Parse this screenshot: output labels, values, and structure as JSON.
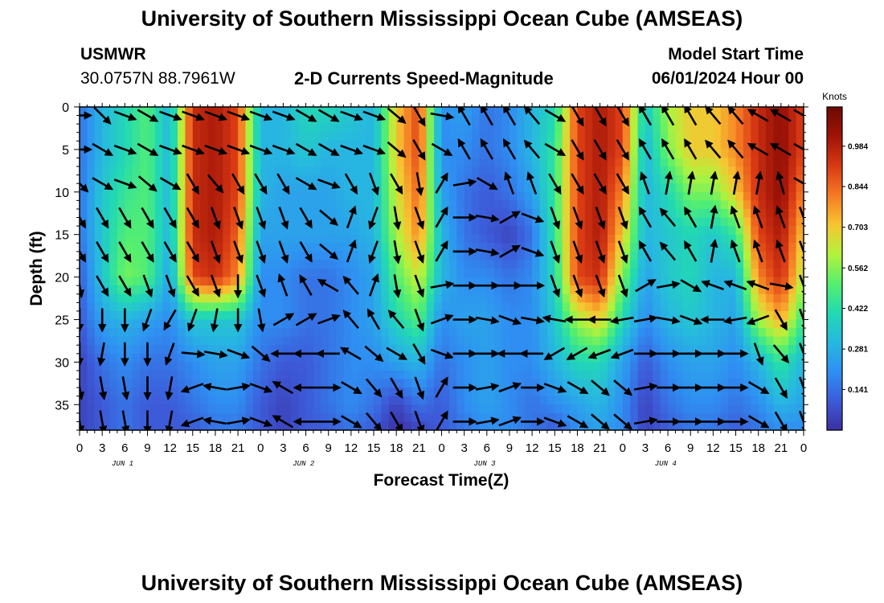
{
  "header": {
    "title": "University of Southern Mississippi Ocean Cube (AMSEAS)",
    "station_name": "USMWR",
    "station_coords": "30.0757N  88.7961W",
    "plot_title": "2-D Currents Speed-Magnitude",
    "start_label": "Model Start Time",
    "start_value": "06/01/2024 Hour 00"
  },
  "footer": {
    "title": "University of Southern Mississippi Ocean Cube (AMSEAS)"
  },
  "colors": {
    "ramp": [
      "#3b2fa0",
      "#3d5bd9",
      "#2f8ff2",
      "#27b8e0",
      "#22d9b2",
      "#55ef6f",
      "#b3f23c",
      "#f7c532",
      "#f57b24",
      "#d93a14",
      "#a11408",
      "#6e0a03"
    ]
  },
  "chart_data": {
    "type": "heatmap",
    "xlabel": "Forecast Time(Z)",
    "ylabel": "Depth (ft)",
    "x_ticks": [
      "0",
      "3",
      "6",
      "9",
      "12",
      "15",
      "18",
      "21",
      "0",
      "3",
      "6",
      "9",
      "12",
      "15",
      "18",
      "21",
      "0",
      "3",
      "6",
      "9",
      "12",
      "15",
      "18",
      "21",
      "0",
      "3",
      "6",
      "9",
      "12",
      "15",
      "18",
      "21",
      "0"
    ],
    "x_range_hours": [
      0,
      96
    ],
    "day_labels": [
      {
        "label": "JUN 1",
        "hour": 4
      },
      {
        "label": "JUN 2",
        "hour": 28
      },
      {
        "label": "JUN 3",
        "hour": 52
      },
      {
        "label": "JUN 4",
        "hour": 76
      }
    ],
    "y_ticks": [
      "0",
      "5",
      "10",
      "15",
      "20",
      "25",
      "30",
      "35"
    ],
    "y_range_ft": [
      0,
      38
    ],
    "colorbar": {
      "unit": "Knots",
      "ticks": [
        "0.984",
        "0.844",
        "0.703",
        "0.562",
        "0.422",
        "0.281",
        "0.141"
      ],
      "range": [
        0,
        1.12
      ]
    },
    "speed_grid": {
      "hours": [
        0,
        3,
        6,
        9,
        12,
        15,
        18,
        21,
        24,
        27,
        30,
        33,
        36,
        39,
        42,
        45,
        48,
        51,
        54,
        57,
        60,
        63,
        66,
        69,
        72,
        75,
        78,
        81,
        84,
        87,
        90,
        93,
        96
      ],
      "depths_ft": [
        0,
        5,
        10,
        15,
        20,
        25,
        30,
        35,
        38
      ],
      "values": [
        [
          0.15,
          0.3,
          0.4,
          0.5,
          0.3,
          0.95,
          1.0,
          0.9,
          0.3,
          0.3,
          0.4,
          0.4,
          0.35,
          0.3,
          0.7,
          0.9,
          0.2,
          0.25,
          0.15,
          0.2,
          0.3,
          0.4,
          0.9,
          1.0,
          0.9,
          0.35,
          0.6,
          0.7,
          0.7,
          0.8,
          0.95,
          1.05,
          0.9
        ],
        [
          0.15,
          0.3,
          0.4,
          0.5,
          0.3,
          0.95,
          1.0,
          0.9,
          0.3,
          0.3,
          0.35,
          0.3,
          0.3,
          0.3,
          0.7,
          0.9,
          0.2,
          0.2,
          0.15,
          0.2,
          0.3,
          0.45,
          0.9,
          1.0,
          0.9,
          0.3,
          0.55,
          0.7,
          0.7,
          0.8,
          0.95,
          1.05,
          0.9
        ],
        [
          0.15,
          0.35,
          0.45,
          0.5,
          0.3,
          0.95,
          1.0,
          0.9,
          0.3,
          0.25,
          0.25,
          0.25,
          0.3,
          0.3,
          0.65,
          0.85,
          0.25,
          0.15,
          0.1,
          0.15,
          0.25,
          0.45,
          0.9,
          1.0,
          0.8,
          0.3,
          0.4,
          0.55,
          0.55,
          0.7,
          0.95,
          1.05,
          0.8
        ],
        [
          0.15,
          0.35,
          0.5,
          0.5,
          0.3,
          0.95,
          1.0,
          0.85,
          0.25,
          0.25,
          0.25,
          0.25,
          0.25,
          0.3,
          0.6,
          0.8,
          0.3,
          0.15,
          0.1,
          0.05,
          0.15,
          0.45,
          0.9,
          1.0,
          0.7,
          0.3,
          0.35,
          0.4,
          0.35,
          0.45,
          0.9,
          1.0,
          0.7
        ],
        [
          0.1,
          0.35,
          0.55,
          0.5,
          0.25,
          0.9,
          0.95,
          0.8,
          0.2,
          0.2,
          0.15,
          0.15,
          0.2,
          0.25,
          0.5,
          0.65,
          0.3,
          0.2,
          0.2,
          0.15,
          0.2,
          0.4,
          0.9,
          0.95,
          0.55,
          0.25,
          0.35,
          0.4,
          0.3,
          0.3,
          0.8,
          0.95,
          0.6
        ],
        [
          0.1,
          0.25,
          0.3,
          0.25,
          0.2,
          0.35,
          0.35,
          0.35,
          0.2,
          0.2,
          0.15,
          0.15,
          0.2,
          0.25,
          0.4,
          0.5,
          0.2,
          0.25,
          0.25,
          0.2,
          0.2,
          0.35,
          0.6,
          0.7,
          0.4,
          0.2,
          0.3,
          0.35,
          0.3,
          0.25,
          0.6,
          0.75,
          0.45
        ],
        [
          0.05,
          0.15,
          0.2,
          0.15,
          0.15,
          0.2,
          0.25,
          0.25,
          0.15,
          0.1,
          0.1,
          0.15,
          0.2,
          0.2,
          0.25,
          0.3,
          0.15,
          0.2,
          0.25,
          0.2,
          0.2,
          0.3,
          0.4,
          0.4,
          0.25,
          0.1,
          0.2,
          0.25,
          0.25,
          0.2,
          0.3,
          0.45,
          0.3
        ],
        [
          0.05,
          0.1,
          0.15,
          0.1,
          0.1,
          0.15,
          0.2,
          0.2,
          0.1,
          0.05,
          0.1,
          0.15,
          0.2,
          0.15,
          0.05,
          0.15,
          0.1,
          0.2,
          0.25,
          0.2,
          0.15,
          0.2,
          0.25,
          0.3,
          0.2,
          0.05,
          0.15,
          0.2,
          0.2,
          0.15,
          0.2,
          0.3,
          0.25
        ],
        [
          0.05,
          0.1,
          0.15,
          0.1,
          0.1,
          0.1,
          0.15,
          0.15,
          0.1,
          0.05,
          0.1,
          0.1,
          0.15,
          0.1,
          0.0,
          0.05,
          0.1,
          0.15,
          0.2,
          0.2,
          0.15,
          0.1,
          0.2,
          0.25,
          0.2,
          0.05,
          0.1,
          0.15,
          0.15,
          0.1,
          0.15,
          0.2,
          0.2
        ]
      ]
    },
    "direction_grid_deg": {
      "note": "arrow headings in compass degrees (0=N, 90=E), one row per speed_grid depth",
      "values": [
        [
          90,
          135,
          110,
          120,
          110,
          110,
          110,
          110,
          110,
          110,
          120,
          120,
          110,
          110,
          130,
          150,
          100,
          330,
          330,
          330,
          320,
          120,
          150,
          150,
          150,
          330,
          330,
          330,
          320,
          320,
          300,
          300,
          120
        ],
        [
          90,
          120,
          110,
          120,
          110,
          110,
          110,
          110,
          110,
          110,
          120,
          120,
          110,
          110,
          130,
          150,
          120,
          330,
          330,
          330,
          320,
          120,
          150,
          150,
          150,
          330,
          330,
          330,
          320,
          320,
          300,
          300,
          120
        ],
        [
          135,
          120,
          110,
          130,
          120,
          150,
          140,
          150,
          150,
          150,
          120,
          110,
          150,
          160,
          150,
          170,
          30,
          80,
          120,
          340,
          340,
          150,
          150,
          150,
          150,
          340,
          10,
          10,
          10,
          10,
          10,
          345,
          120
        ],
        [
          150,
          150,
          150,
          150,
          150,
          150,
          160,
          160,
          160,
          160,
          150,
          130,
          20,
          200,
          170,
          160,
          30,
          90,
          100,
          60,
          110,
          160,
          160,
          160,
          160,
          330,
          320,
          330,
          10,
          340,
          340,
          340,
          160
        ],
        [
          170,
          150,
          150,
          160,
          160,
          150,
          160,
          180,
          160,
          340,
          330,
          300,
          320,
          20,
          170,
          160,
          80,
          90,
          90,
          90,
          90,
          160,
          160,
          160,
          160,
          60,
          80,
          120,
          290,
          290,
          290,
          100,
          160
        ],
        [
          180,
          180,
          180,
          200,
          210,
          200,
          190,
          180,
          170,
          60,
          60,
          70,
          320,
          330,
          320,
          160,
          70,
          90,
          100,
          110,
          100,
          280,
          270,
          270,
          260,
          80,
          100,
          110,
          270,
          260,
          250,
          150,
          160
        ],
        [
          180,
          190,
          180,
          180,
          200,
          95,
          100,
          110,
          130,
          270,
          270,
          270,
          300,
          130,
          120,
          150,
          110,
          90,
          90,
          270,
          270,
          240,
          240,
          250,
          250,
          90,
          90,
          90,
          90,
          90,
          160,
          140,
          160
        ],
        [
          170,
          170,
          170,
          180,
          190,
          250,
          280,
          80,
          110,
          300,
          270,
          90,
          120,
          140,
          150,
          160,
          30,
          90,
          80,
          70,
          90,
          110,
          120,
          130,
          130,
          80,
          90,
          90,
          90,
          90,
          120,
          150,
          160
        ],
        [
          170,
          170,
          170,
          180,
          190,
          250,
          280,
          80,
          110,
          300,
          270,
          90,
          120,
          140,
          150,
          160,
          30,
          90,
          80,
          70,
          90,
          110,
          120,
          130,
          130,
          80,
          90,
          90,
          90,
          90,
          120,
          150,
          160
        ]
      ]
    }
  }
}
